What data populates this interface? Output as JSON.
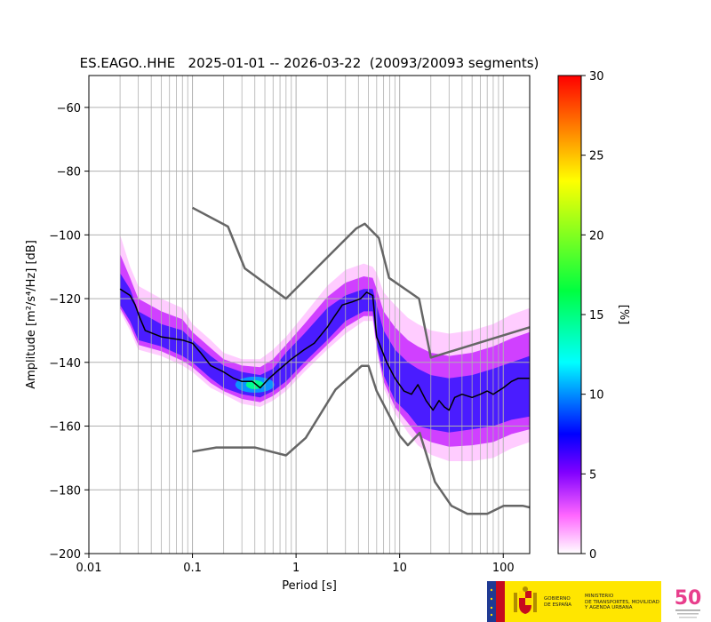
{
  "chart_data": {
    "type": "heatmap",
    "title": "ES.EAGO..HHE   2025-01-01 -- 2026-03-22  (20093/20093 segments)",
    "xlabel": "Period [s]",
    "ylabel": "Amplitude [m²/s⁴/Hz] [dB]",
    "xscale": "log",
    "xlim": [
      0.01,
      180
    ],
    "ylim": [
      -200,
      -50
    ],
    "x_ticks": [
      0.01,
      0.1,
      1,
      10,
      100
    ],
    "x_ticklabels": [
      "0.01",
      "0.1",
      "1",
      "10",
      "100"
    ],
    "y_ticks": [
      -200,
      -180,
      -160,
      -140,
      -120,
      -100,
      -80,
      -60
    ],
    "y_ticklabels": [
      "−200",
      "−180",
      "−160",
      "−140",
      "−120",
      "−100",
      "−80",
      "−60"
    ],
    "grid": true,
    "colorbar": {
      "label": "[%]",
      "range": [
        0,
        30
      ],
      "ticks": [
        0,
        5,
        10,
        15,
        20,
        25,
        30
      ],
      "colormap": "pqlx"
    },
    "density_band": [
      {
        "period": 0.02,
        "low": -124,
        "high": -100,
        "core_low": -122,
        "core_high": -112
      },
      {
        "period": 0.025,
        "low": -130,
        "high": -110,
        "core_low": -127,
        "core_high": -117
      },
      {
        "period": 0.03,
        "low": -136,
        "high": -116,
        "core_low": -133,
        "core_high": -124
      },
      {
        "period": 0.05,
        "low": -138,
        "high": -120,
        "core_low": -135,
        "core_high": -128
      },
      {
        "period": 0.08,
        "low": -141,
        "high": -123,
        "core_low": -138,
        "core_high": -130
      },
      {
        "period": 0.1,
        "low": -143,
        "high": -128,
        "core_low": -140,
        "core_high": -133
      },
      {
        "period": 0.15,
        "low": -148,
        "high": -133,
        "core_low": -145,
        "core_high": -138
      },
      {
        "period": 0.2,
        "low": -150,
        "high": -137,
        "core_low": -148,
        "core_high": -141
      },
      {
        "period": 0.3,
        "low": -153,
        "high": -139,
        "core_low": -150,
        "core_high": -143
      },
      {
        "period": 0.45,
        "low": -154,
        "high": -139,
        "core_low": -151,
        "core_high": -144
      },
      {
        "period": 0.6,
        "low": -152,
        "high": -136,
        "core_low": -149,
        "core_high": -142
      },
      {
        "period": 0.8,
        "low": -149,
        "high": -132,
        "core_low": -146,
        "core_high": -137
      },
      {
        "period": 1.2,
        "low": -143,
        "high": -125,
        "core_low": -140,
        "core_high": -131
      },
      {
        "period": 2,
        "low": -136,
        "high": -116,
        "core_low": -133,
        "core_high": -123
      },
      {
        "period": 3,
        "low": -131,
        "high": -111,
        "core_low": -127,
        "core_high": -119
      },
      {
        "period": 4.5,
        "low": -127,
        "high": -109,
        "core_low": -124,
        "core_high": -117
      },
      {
        "period": 5.5,
        "low": -127,
        "high": -110,
        "core_low": -124,
        "core_high": -117
      },
      {
        "period": 6,
        "low": -136,
        "high": -112,
        "core_low": -134,
        "core_high": -122
      },
      {
        "period": 7,
        "low": -148,
        "high": -118,
        "core_low": -144,
        "core_high": -130
      },
      {
        "period": 9,
        "low": -156,
        "high": -122,
        "core_low": -152,
        "core_high": -136
      },
      {
        "period": 12,
        "low": -162,
        "high": -126,
        "core_low": -156,
        "core_high": -140
      },
      {
        "period": 15,
        "low": -166,
        "high": -128,
        "core_low": -160,
        "core_high": -142
      },
      {
        "period": 20,
        "low": -169,
        "high": -130,
        "core_low": -161,
        "core_high": -144
      },
      {
        "period": 30,
        "low": -171,
        "high": -131,
        "core_low": -162,
        "core_high": -145
      },
      {
        "period": 50,
        "low": -171,
        "high": -130,
        "core_low": -161,
        "core_high": -144
      },
      {
        "period": 80,
        "low": -170,
        "high": -128,
        "core_low": -160,
        "core_high": -142
      },
      {
        "period": 120,
        "low": -167,
        "high": -125,
        "core_low": -158,
        "core_high": -140
      },
      {
        "period": 180,
        "low": -165,
        "high": -123,
        "core_low": -157,
        "core_high": -138
      }
    ],
    "peak_hotspot": {
      "period": 0.4,
      "db": -147,
      "percent": 15
    },
    "mode_line": [
      {
        "period": 0.02,
        "db": -117
      },
      {
        "period": 0.025,
        "db": -119
      },
      {
        "period": 0.028,
        "db": -122
      },
      {
        "period": 0.031,
        "db": -126
      },
      {
        "period": 0.035,
        "db": -130
      },
      {
        "period": 0.05,
        "db": -132
      },
      {
        "period": 0.08,
        "db": -133
      },
      {
        "period": 0.1,
        "db": -134
      },
      {
        "period": 0.12,
        "db": -137
      },
      {
        "period": 0.15,
        "db": -141
      },
      {
        "period": 0.2,
        "db": -143
      },
      {
        "period": 0.25,
        "db": -145
      },
      {
        "period": 0.3,
        "db": -146
      },
      {
        "period": 0.38,
        "db": -146
      },
      {
        "period": 0.45,
        "db": -148
      },
      {
        "period": 0.55,
        "db": -145
      },
      {
        "period": 0.7,
        "db": -142
      },
      {
        "period": 0.9,
        "db": -139
      },
      {
        "period": 1.2,
        "db": -136
      },
      {
        "period": 1.5,
        "db": -134
      },
      {
        "period": 2,
        "db": -129
      },
      {
        "period": 2.3,
        "db": -126
      },
      {
        "period": 2.8,
        "db": -122
      },
      {
        "period": 3.5,
        "db": -121
      },
      {
        "period": 4.2,
        "db": -120
      },
      {
        "period": 4.8,
        "db": -118
      },
      {
        "period": 5.5,
        "db": -119
      },
      {
        "period": 6,
        "db": -132
      },
      {
        "period": 7.5,
        "db": -140
      },
      {
        "period": 9,
        "db": -145
      },
      {
        "period": 11,
        "db": -149
      },
      {
        "period": 13,
        "db": -150
      },
      {
        "period": 15,
        "db": -147
      },
      {
        "period": 18,
        "db": -152
      },
      {
        "period": 21,
        "db": -155
      },
      {
        "period": 24,
        "db": -152
      },
      {
        "period": 27,
        "db": -154
      },
      {
        "period": 30,
        "db": -155
      },
      {
        "period": 34,
        "db": -151
      },
      {
        "period": 40,
        "db": -150
      },
      {
        "period": 50,
        "db": -151
      },
      {
        "period": 60,
        "db": -150
      },
      {
        "period": 70,
        "db": -149
      },
      {
        "period": 80,
        "db": -150
      },
      {
        "period": 100,
        "db": -148
      },
      {
        "period": 120,
        "db": -146
      },
      {
        "period": 140,
        "db": -145
      },
      {
        "period": 180,
        "db": -145
      }
    ],
    "model_lines": [
      {
        "points": [
          {
            "period": 0.1,
            "db": -91.5
          },
          {
            "period": 0.22,
            "db": -97.4
          },
          {
            "period": 0.32,
            "db": -110.5
          },
          {
            "period": 0.8,
            "db": -120
          },
          {
            "period": 3.8,
            "db": -98
          },
          {
            "period": 4.6,
            "db": -96.5
          },
          {
            "period": 6.3,
            "db": -101
          },
          {
            "period": 7.9,
            "db": -113.5
          },
          {
            "period": 15.4,
            "db": -120
          },
          {
            "period": 20,
            "db": -138.5
          },
          {
            "period": 180,
            "db": -129
          }
        ]
      },
      {
        "points": [
          {
            "period": 0.1,
            "db": -168
          },
          {
            "period": 0.17,
            "db": -166.7
          },
          {
            "period": 0.4,
            "db": -166.7
          },
          {
            "period": 0.8,
            "db": -169.2
          },
          {
            "period": 1.24,
            "db": -163.7
          },
          {
            "period": 2.4,
            "db": -148.6
          },
          {
            "period": 4.3,
            "db": -141.1
          },
          {
            "period": 5,
            "db": -141.1
          },
          {
            "period": 6,
            "db": -149
          },
          {
            "period": 10,
            "db": -163
          },
          {
            "period": 12,
            "db": -166
          },
          {
            "period": 15.6,
            "db": -162.1
          },
          {
            "period": 21.9,
            "db": -177.5
          },
          {
            "period": 31.6,
            "db": -185
          },
          {
            "period": 45,
            "db": -187.5
          },
          {
            "period": 70,
            "db": -187.5
          },
          {
            "period": 101,
            "db": -185
          },
          {
            "period": 154,
            "db": -185
          },
          {
            "period": 180,
            "db": -185.5
          }
        ]
      }
    ],
    "colors": {
      "mode_line": "#000000",
      "model_lines": "#666666",
      "grid": "#b0b0b0"
    }
  },
  "logo": {
    "gov_text": "GOBIERNO\nDE ESPAÑA",
    "ministry_text": "MINISTERIO\nDE TRANSPORTES, MOVILIDAD\nY AGENDA URBANA",
    "anniv_text": "50"
  }
}
